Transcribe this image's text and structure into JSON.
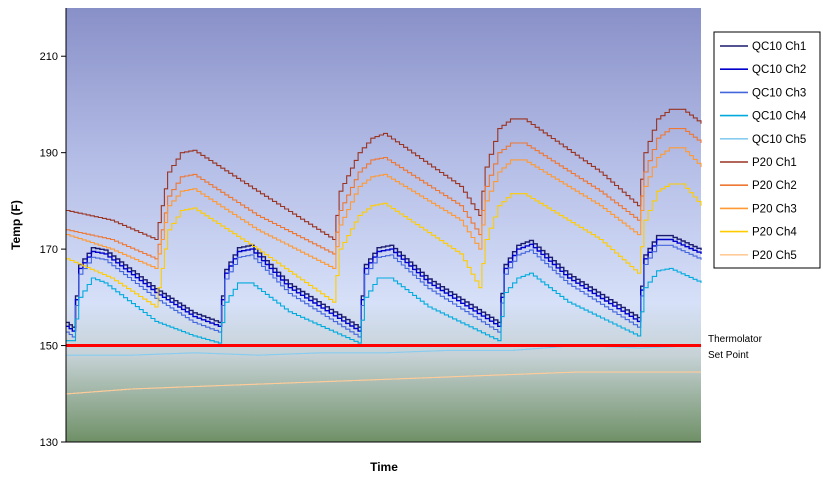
{
  "chart_data": {
    "type": "line",
    "xlabel": "Time",
    "ylabel": "Temp (F)",
    "ylim": [
      130,
      220
    ],
    "yticks": [
      130,
      150,
      170,
      190,
      210
    ],
    "xlim": [
      0,
      100
    ],
    "grid": false,
    "legend_position": "right",
    "reference_line": {
      "value": 150,
      "label_line1": "Thermolator",
      "label_line2": "Set Point",
      "color": "#ff0000"
    },
    "series": [
      {
        "name": "QC10 Ch1",
        "color": "#1a1a6e",
        "pattern": "lower",
        "offset": 0.8,
        "points": [
          [
            0,
            154
          ],
          [
            1,
            153
          ],
          [
            2,
            166
          ],
          [
            4,
            169.5
          ],
          [
            6,
            169
          ],
          [
            14,
            161
          ],
          [
            20,
            156
          ],
          [
            24,
            154
          ],
          [
            25,
            165
          ],
          [
            27,
            169.5
          ],
          [
            29,
            170
          ],
          [
            35,
            162
          ],
          [
            46,
            153
          ],
          [
            47,
            166
          ],
          [
            49,
            169.5
          ],
          [
            51,
            170
          ],
          [
            57,
            163
          ],
          [
            68,
            154
          ],
          [
            69,
            166
          ],
          [
            71,
            170
          ],
          [
            73,
            171
          ],
          [
            79,
            164
          ],
          [
            90,
            155
          ],
          [
            91,
            168
          ],
          [
            93,
            172
          ],
          [
            95,
            172
          ],
          [
            100,
            169
          ]
        ]
      },
      {
        "name": "QC10 Ch2",
        "color": "#0000cc",
        "pattern": "lower",
        "offset": 0.0,
        "points": [
          [
            0,
            154
          ],
          [
            1,
            153
          ],
          [
            2,
            166
          ],
          [
            4,
            169.5
          ],
          [
            6,
            169
          ],
          [
            14,
            161
          ],
          [
            20,
            156
          ],
          [
            24,
            154
          ],
          [
            25,
            165
          ],
          [
            27,
            169.5
          ],
          [
            29,
            170
          ],
          [
            35,
            162
          ],
          [
            46,
            153
          ],
          [
            47,
            166
          ],
          [
            49,
            169.5
          ],
          [
            51,
            170
          ],
          [
            57,
            163
          ],
          [
            68,
            154
          ],
          [
            69,
            166
          ],
          [
            71,
            170
          ],
          [
            73,
            171
          ],
          [
            79,
            164
          ],
          [
            90,
            155
          ],
          [
            91,
            168
          ],
          [
            93,
            172
          ],
          [
            95,
            172
          ],
          [
            100,
            169
          ]
        ]
      },
      {
        "name": "QC10 Ch3",
        "color": "#4466dd",
        "pattern": "lower",
        "offset": -1.2,
        "points": [
          [
            0,
            154
          ],
          [
            1,
            153
          ],
          [
            2,
            166
          ],
          [
            4,
            169.5
          ],
          [
            6,
            169
          ],
          [
            14,
            161
          ],
          [
            20,
            156
          ],
          [
            24,
            154
          ],
          [
            25,
            165
          ],
          [
            27,
            169.5
          ],
          [
            29,
            170
          ],
          [
            35,
            162
          ],
          [
            46,
            153
          ],
          [
            47,
            166
          ],
          [
            49,
            169.5
          ],
          [
            51,
            170
          ],
          [
            57,
            163
          ],
          [
            68,
            154
          ],
          [
            69,
            166
          ],
          [
            71,
            170
          ],
          [
            73,
            171
          ],
          [
            79,
            164
          ],
          [
            90,
            155
          ],
          [
            91,
            168
          ],
          [
            93,
            172
          ],
          [
            95,
            172
          ],
          [
            100,
            169
          ]
        ]
      },
      {
        "name": "QC10 Ch4",
        "color": "#00aadd",
        "pattern": "lower",
        "offset": 0,
        "points": [
          [
            0,
            151
          ],
          [
            1,
            151
          ],
          [
            2,
            160
          ],
          [
            4,
            164
          ],
          [
            6,
            163
          ],
          [
            14,
            155
          ],
          [
            20,
            152
          ],
          [
            24,
            150.5
          ],
          [
            25,
            159
          ],
          [
            27,
            163
          ],
          [
            29,
            163
          ],
          [
            35,
            157
          ],
          [
            46,
            150.5
          ],
          [
            47,
            160
          ],
          [
            49,
            164
          ],
          [
            51,
            164
          ],
          [
            57,
            158
          ],
          [
            68,
            151
          ],
          [
            69,
            161
          ],
          [
            71,
            164
          ],
          [
            73,
            165
          ],
          [
            79,
            159
          ],
          [
            90,
            152
          ],
          [
            91,
            162
          ],
          [
            93,
            165.5
          ],
          [
            95,
            166
          ],
          [
            100,
            163
          ]
        ]
      },
      {
        "name": "QC10 Ch5",
        "color": "#88ccf0",
        "pattern": "flat",
        "offset": 0,
        "points": [
          [
            0,
            148
          ],
          [
            10,
            148
          ],
          [
            20,
            148.5
          ],
          [
            30,
            148
          ],
          [
            40,
            148.5
          ],
          [
            50,
            148.5
          ],
          [
            60,
            149
          ],
          [
            70,
            149
          ],
          [
            80,
            150
          ],
          [
            90,
            149.5
          ],
          [
            100,
            150
          ]
        ]
      },
      {
        "name": "P20 Ch1",
        "color": "#993322",
        "pattern": "upper",
        "offset": 0,
        "points": [
          [
            0,
            178
          ],
          [
            7,
            176
          ],
          [
            14,
            172
          ],
          [
            15,
            179
          ],
          [
            16,
            186
          ],
          [
            18,
            190
          ],
          [
            20,
            190.5
          ],
          [
            30,
            182
          ],
          [
            42,
            172
          ],
          [
            43,
            182
          ],
          [
            46,
            190
          ],
          [
            48,
            193
          ],
          [
            50,
            194
          ],
          [
            62,
            183
          ],
          [
            65,
            177
          ],
          [
            66,
            187
          ],
          [
            68,
            195
          ],
          [
            70,
            197
          ],
          [
            72,
            197
          ],
          [
            84,
            186
          ],
          [
            90,
            179
          ],
          [
            91,
            190
          ],
          [
            93,
            197
          ],
          [
            95,
            199
          ],
          [
            97,
            199
          ],
          [
            100,
            196
          ]
        ]
      },
      {
        "name": "P20 Ch2",
        "color": "#ee7733",
        "pattern": "upper",
        "offset": 0,
        "points": [
          [
            0,
            174
          ],
          [
            7,
            172
          ],
          [
            14,
            168
          ],
          [
            15,
            174
          ],
          [
            16,
            181
          ],
          [
            18,
            185
          ],
          [
            20,
            185.5
          ],
          [
            30,
            177
          ],
          [
            42,
            169
          ],
          [
            43,
            178
          ],
          [
            46,
            186
          ],
          [
            48,
            188.5
          ],
          [
            50,
            189
          ],
          [
            62,
            179
          ],
          [
            65,
            173
          ],
          [
            66,
            183
          ],
          [
            68,
            190
          ],
          [
            70,
            192
          ],
          [
            72,
            192
          ],
          [
            84,
            182
          ],
          [
            90,
            176
          ],
          [
            91,
            186
          ],
          [
            93,
            193
          ],
          [
            95,
            195
          ],
          [
            97,
            195
          ],
          [
            100,
            192
          ]
        ]
      },
      {
        "name": "P20 Ch3",
        "color": "#ff9933",
        "pattern": "upper",
        "offset": 0,
        "points": [
          [
            0,
            173
          ],
          [
            7,
            170
          ],
          [
            14,
            166
          ],
          [
            15,
            172
          ],
          [
            16,
            179
          ],
          [
            18,
            182
          ],
          [
            20,
            182.5
          ],
          [
            30,
            174
          ],
          [
            42,
            166
          ],
          [
            43,
            175
          ],
          [
            46,
            183
          ],
          [
            48,
            185
          ],
          [
            50,
            185.5
          ],
          [
            62,
            176
          ],
          [
            65,
            170
          ],
          [
            66,
            180
          ],
          [
            68,
            186
          ],
          [
            70,
            188.5
          ],
          [
            72,
            188.5
          ],
          [
            84,
            179
          ],
          [
            90,
            173
          ],
          [
            91,
            183
          ],
          [
            93,
            189
          ],
          [
            95,
            191
          ],
          [
            97,
            191
          ],
          [
            100,
            187
          ]
        ]
      },
      {
        "name": "P20 Ch4",
        "color": "#ffcc00",
        "pattern": "upper",
        "offset": 0,
        "points": [
          [
            0,
            168
          ],
          [
            7,
            164
          ],
          [
            14,
            158
          ],
          [
            15,
            166
          ],
          [
            16,
            174
          ],
          [
            18,
            178
          ],
          [
            20,
            178.5
          ],
          [
            30,
            170
          ],
          [
            42,
            159
          ],
          [
            43,
            170
          ],
          [
            46,
            177
          ],
          [
            48,
            179
          ],
          [
            50,
            179.5
          ],
          [
            62,
            169
          ],
          [
            65,
            162
          ],
          [
            66,
            172
          ],
          [
            68,
            179
          ],
          [
            70,
            181.5
          ],
          [
            72,
            181.5
          ],
          [
            84,
            172
          ],
          [
            90,
            165
          ],
          [
            91,
            176
          ],
          [
            93,
            182
          ],
          [
            95,
            183.5
          ],
          [
            97,
            183.5
          ],
          [
            100,
            179
          ]
        ]
      },
      {
        "name": "P20 Ch5",
        "color": "#ffcc99",
        "pattern": "flat",
        "offset": 0,
        "points": [
          [
            0,
            140
          ],
          [
            10,
            141
          ],
          [
            20,
            141.5
          ],
          [
            30,
            142
          ],
          [
            40,
            142.5
          ],
          [
            50,
            143
          ],
          [
            60,
            143.5
          ],
          [
            70,
            144
          ],
          [
            80,
            144.5
          ],
          [
            90,
            144.5
          ],
          [
            100,
            144.5
          ]
        ]
      }
    ]
  }
}
